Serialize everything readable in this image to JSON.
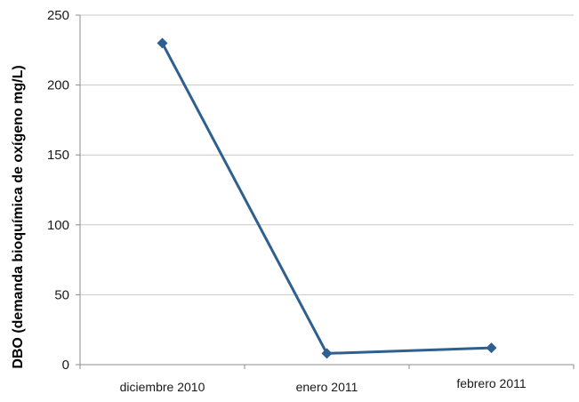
{
  "chart_data": {
    "type": "line",
    "categories": [
      "diciembre 2010",
      "enero 2011",
      "febrero 2011"
    ],
    "series": [
      {
        "values": [
          230,
          8,
          12
        ]
      }
    ],
    "ylabel": "DBO (demanda bioquímica de oxígeno mg/L)",
    "xlabel": "",
    "ylim": [
      0,
      250
    ],
    "yticks": [
      0,
      50,
      100,
      150,
      200,
      250
    ],
    "grid": true,
    "legend": "none",
    "colors": {
      "line": "#2e5f8f",
      "grid": "#c8c8c8",
      "axis": "#8c8c8c"
    }
  }
}
